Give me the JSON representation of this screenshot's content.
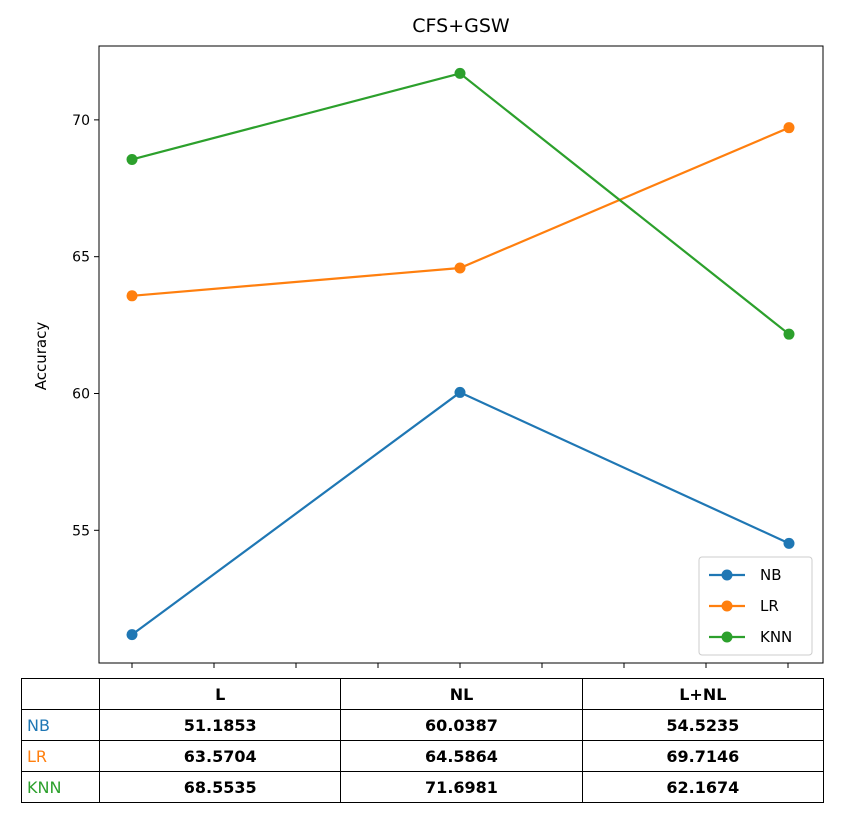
{
  "chart_data": {
    "type": "line",
    "title": "CFS+GSW",
    "xlabel": "",
    "ylabel": "Accuracy",
    "categories": [
      "L",
      "NL",
      "L+NL"
    ],
    "series": [
      {
        "name": "NB",
        "color": "#1f77b4",
        "values": [
          51.1853,
          60.0387,
          54.5235
        ]
      },
      {
        "name": "LR",
        "color": "#ff7f0e",
        "values": [
          63.5704,
          64.5864,
          69.7146
        ]
      },
      {
        "name": "KNN",
        "color": "#2ca02c",
        "values": [
          68.5535,
          71.6981,
          62.1674
        ]
      }
    ],
    "yticks": [
      55,
      60,
      65,
      70
    ],
    "ylim": [
      50.15,
      72.7
    ],
    "legend_position": "lower right",
    "grid": false
  },
  "table": {
    "header": [
      "",
      "L",
      "NL",
      "L+NL"
    ],
    "rows": [
      {
        "label": "NB",
        "color": "#1f77b4",
        "cells": [
          "51.1853",
          "60.0387",
          "54.5235"
        ]
      },
      {
        "label": "LR",
        "color": "#ff7f0e",
        "cells": [
          "63.5704",
          "64.5864",
          "69.7146"
        ]
      },
      {
        "label": "KNN",
        "color": "#2ca02c",
        "cells": [
          "68.5535",
          "71.6981",
          "62.1674"
        ]
      }
    ]
  }
}
